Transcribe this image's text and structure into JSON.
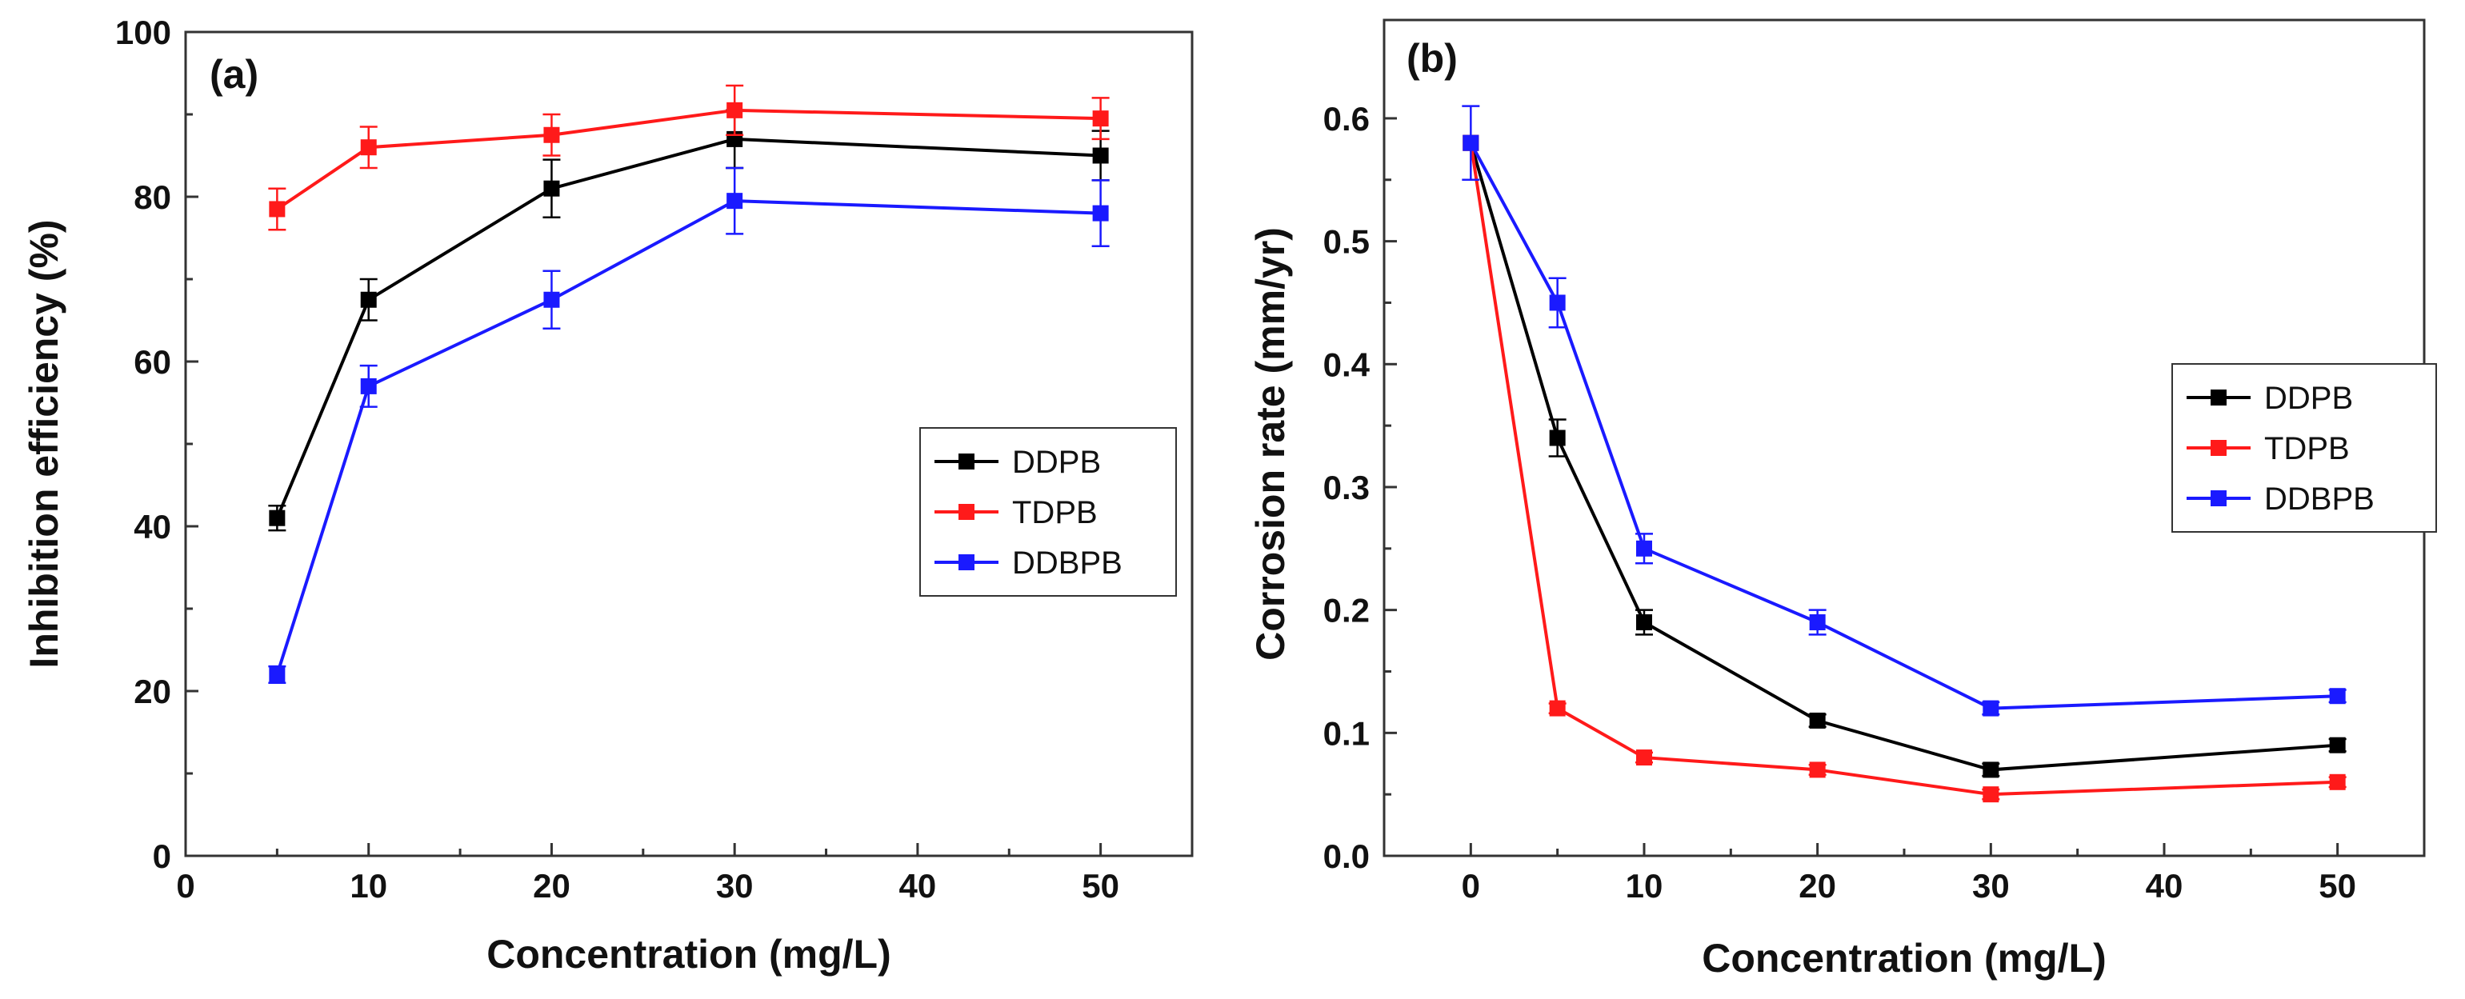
{
  "chart_data": [
    {
      "panel": "(a)",
      "type": "line",
      "xlabel": "Concentration (mg/L)",
      "ylabel": "Inhibition efficiency (%)",
      "xlim": [
        0,
        55
      ],
      "ylim": [
        0,
        100
      ],
      "xticks": [
        0,
        10,
        20,
        30,
        40,
        50
      ],
      "yticks": [
        0,
        20,
        40,
        60,
        80,
        100
      ],
      "grid": false,
      "legend_position": "center-right",
      "series": [
        {
          "name": "DDPB",
          "color": "#000000",
          "x": [
            5,
            10,
            20,
            30,
            50
          ],
          "y": [
            41,
            67.5,
            81,
            87,
            85
          ],
          "err": [
            1.5,
            2.5,
            3.5,
            3.5,
            3
          ]
        },
        {
          "name": "TDPB",
          "color": "#ff1a1a",
          "x": [
            5,
            10,
            20,
            30,
            50
          ],
          "y": [
            78.5,
            86,
            87.5,
            90.5,
            89.5
          ],
          "err": [
            2.5,
            2.5,
            2.5,
            3,
            2.5
          ]
        },
        {
          "name": "DDBPB",
          "color": "#1a1aff",
          "x": [
            5,
            10,
            20,
            30,
            50
          ],
          "y": [
            22,
            57,
            67.5,
            79.5,
            78
          ],
          "err": [
            1,
            2.5,
            3.5,
            4,
            4
          ]
        }
      ]
    },
    {
      "panel": "(b)",
      "type": "line",
      "xlabel": "Concentration (mg/L)",
      "ylabel": "Corrosion rate (mm/yr)",
      "xlim": [
        -5,
        55
      ],
      "ylim": [
        0,
        0.68
      ],
      "xticks": [
        0,
        10,
        20,
        30,
        40,
        50
      ],
      "yticks": [
        0.0,
        0.1,
        0.2,
        0.3,
        0.4,
        0.5,
        0.6
      ],
      "ytick_labels": [
        "0.0",
        "0.1",
        "0.2",
        "0.3",
        "0.4",
        "0.5",
        "0.6"
      ],
      "grid": false,
      "legend_position": "center-right",
      "series": [
        {
          "name": "DDPB",
          "color": "#000000",
          "x": [
            0,
            5,
            10,
            20,
            30,
            50
          ],
          "y": [
            0.58,
            0.34,
            0.19,
            0.11,
            0.07,
            0.09
          ],
          "err": [
            0,
            0.015,
            0.01,
            0.005,
            0.005,
            0.005
          ]
        },
        {
          "name": "TDPB",
          "color": "#ff1a1a",
          "x": [
            0,
            5,
            10,
            20,
            30,
            50
          ],
          "y": [
            0.58,
            0.12,
            0.08,
            0.07,
            0.05,
            0.06
          ],
          "err": [
            0,
            0.004,
            0.004,
            0.004,
            0.004,
            0.004
          ]
        },
        {
          "name": "DDBPB",
          "color": "#1a1aff",
          "x": [
            0,
            5,
            10,
            20,
            30,
            50
          ],
          "y": [
            0.58,
            0.45,
            0.25,
            0.19,
            0.12,
            0.13
          ],
          "err": [
            0.03,
            0.02,
            0.012,
            0.01,
            0.005,
            0.005
          ]
        }
      ]
    }
  ]
}
